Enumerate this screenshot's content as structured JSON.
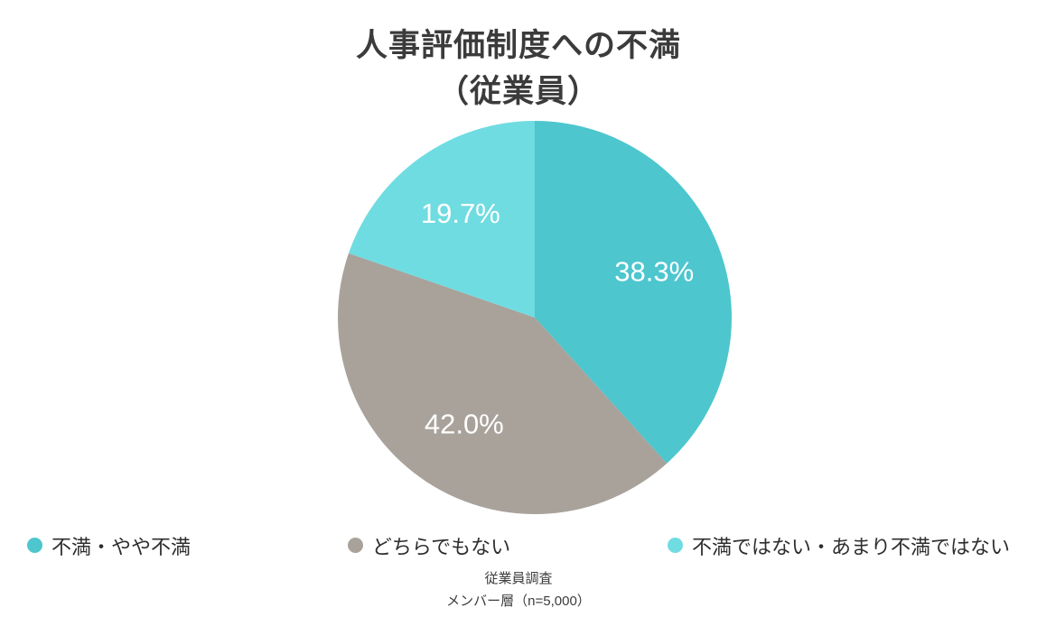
{
  "chart_data": {
    "type": "pie",
    "title": "人事評価制度への不満",
    "subtitle": "（従業員）",
    "start_angle_deg": -90,
    "direction": "clockwise",
    "legend_position": "bottom",
    "slices": [
      {
        "label": "不満・やや不満",
        "value": 38.3,
        "display": "38.3%",
        "color": "#4dc6ce"
      },
      {
        "label": "どちらでもない",
        "value": 42.0,
        "display": "42.0%",
        "color": "#a8a29b"
      },
      {
        "label": "不満ではない・あまり不満ではない",
        "value": 19.7,
        "display": "19.7%",
        "color": "#6fdce1"
      }
    ],
    "source_line1": "従業員調査",
    "source_line2": "メンバー層（n=5,000）"
  }
}
